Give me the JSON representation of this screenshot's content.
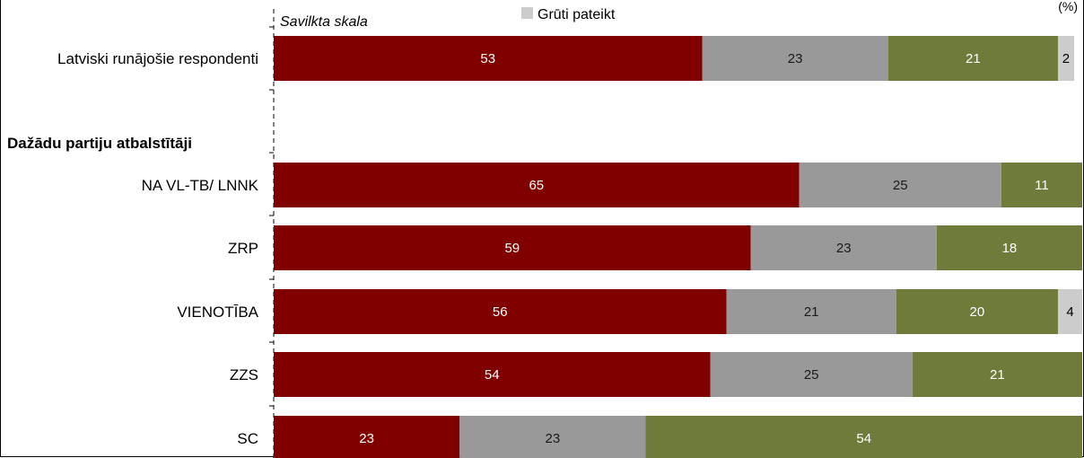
{
  "chart_data": {
    "type": "bar",
    "orientation": "horizontal",
    "stacked": true,
    "scale_note": "Savilkta skala",
    "unit": "(%)",
    "group_header": "Dažādu partiju atbalstītāji",
    "categories": [
      "Latviski runājošie respondenti",
      "NA VL-TB/ LNNK",
      "ZRP",
      "VIENOTĪBA",
      "ZZS",
      "SC"
    ],
    "series": [
      {
        "color": "#800000",
        "values": [
          53,
          65,
          59,
          56,
          54,
          23
        ]
      },
      {
        "color": "#999999",
        "values": [
          23,
          25,
          23,
          21,
          25,
          23
        ]
      },
      {
        "color": "#6f7b3a",
        "values": [
          21,
          11,
          18,
          20,
          21,
          54
        ]
      },
      {
        "name": "Grūti pateikt",
        "color": "#cccccc",
        "values": [
          2,
          0,
          0,
          4,
          0,
          0
        ]
      }
    ],
    "xlim": [
      0,
      100
    ],
    "legend": {
      "position": "top",
      "visible_entries": [
        "Grūti pateikt"
      ]
    }
  }
}
